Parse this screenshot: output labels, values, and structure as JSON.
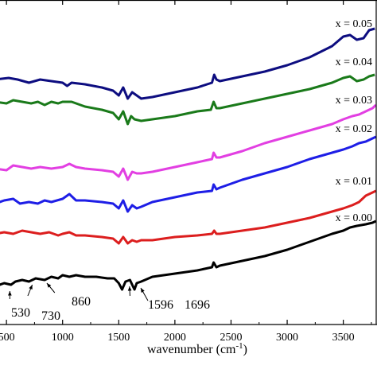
{
  "chart_data": {
    "type": "line",
    "xlabel": "wavenumber (cm",
    "xlabel_sup": "-1",
    "xlabel_close": ")",
    "xlim": [
      400,
      3800
    ],
    "xticks": [
      500,
      1000,
      1500,
      2000,
      2500,
      3000,
      3500
    ],
    "xtick_labels": [
      "500",
      "1000",
      "1500",
      "2000",
      "2500",
      "3000",
      "3500"
    ],
    "grid": false,
    "series": [
      {
        "name": "x = 0.05",
        "color": "#0d0d80",
        "points": [
          [
            400,
            100
          ],
          [
            520,
            98
          ],
          [
            600,
            100
          ],
          [
            700,
            104
          ],
          [
            800,
            100
          ],
          [
            900,
            102
          ],
          [
            1000,
            104
          ],
          [
            1040,
            108
          ],
          [
            1080,
            104
          ],
          [
            1200,
            106
          ],
          [
            1350,
            110
          ],
          [
            1450,
            114
          ],
          [
            1500,
            120
          ],
          [
            1540,
            110
          ],
          [
            1580,
            124
          ],
          [
            1620,
            116
          ],
          [
            1660,
            120
          ],
          [
            1700,
            124
          ],
          [
            1800,
            122
          ],
          [
            2000,
            116
          ],
          [
            2200,
            110
          ],
          [
            2330,
            104
          ],
          [
            2350,
            94
          ],
          [
            2370,
            100
          ],
          [
            2400,
            102
          ],
          [
            2600,
            96
          ],
          [
            2800,
            90
          ],
          [
            3000,
            82
          ],
          [
            3200,
            72
          ],
          [
            3400,
            58
          ],
          [
            3500,
            46
          ],
          [
            3560,
            44
          ],
          [
            3620,
            50
          ],
          [
            3680,
            48
          ],
          [
            3730,
            38
          ],
          [
            3780,
            36
          ]
        ]
      },
      {
        "name": "x = 0.04",
        "color": "#1a7a1a",
        "points": [
          [
            400,
            128
          ],
          [
            500,
            130
          ],
          [
            560,
            126
          ],
          [
            640,
            128
          ],
          [
            720,
            130
          ],
          [
            780,
            128
          ],
          [
            840,
            132
          ],
          [
            900,
            128
          ],
          [
            960,
            130
          ],
          [
            1000,
            128
          ],
          [
            1080,
            128
          ],
          [
            1200,
            134
          ],
          [
            1350,
            138
          ],
          [
            1450,
            142
          ],
          [
            1500,
            150
          ],
          [
            1540,
            140
          ],
          [
            1580,
            156
          ],
          [
            1610,
            146
          ],
          [
            1640,
            150
          ],
          [
            1700,
            152
          ],
          [
            1800,
            150
          ],
          [
            2000,
            146
          ],
          [
            2200,
            140
          ],
          [
            2320,
            138
          ],
          [
            2345,
            128
          ],
          [
            2370,
            136
          ],
          [
            2400,
            136
          ],
          [
            2600,
            130
          ],
          [
            2800,
            124
          ],
          [
            3000,
            118
          ],
          [
            3200,
            112
          ],
          [
            3400,
            104
          ],
          [
            3500,
            98
          ],
          [
            3560,
            96
          ],
          [
            3620,
            102
          ],
          [
            3680,
            100
          ],
          [
            3730,
            96
          ],
          [
            3780,
            94
          ]
        ]
      },
      {
        "name": "x = 0.03",
        "color": "#e23fe2",
        "points": [
          [
            400,
            212
          ],
          [
            500,
            214
          ],
          [
            560,
            208
          ],
          [
            640,
            210
          ],
          [
            720,
            212
          ],
          [
            800,
            210
          ],
          [
            900,
            212
          ],
          [
            1000,
            210
          ],
          [
            1060,
            206
          ],
          [
            1120,
            210
          ],
          [
            1200,
            212
          ],
          [
            1350,
            214
          ],
          [
            1450,
            216
          ],
          [
            1500,
            222
          ],
          [
            1540,
            212
          ],
          [
            1580,
            226
          ],
          [
            1620,
            216
          ],
          [
            1660,
            218
          ],
          [
            1700,
            218
          ],
          [
            1800,
            216
          ],
          [
            2000,
            210
          ],
          [
            2200,
            204
          ],
          [
            2330,
            200
          ],
          [
            2345,
            192
          ],
          [
            2370,
            198
          ],
          [
            2400,
            198
          ],
          [
            2600,
            190
          ],
          [
            2800,
            180
          ],
          [
            3000,
            172
          ],
          [
            3200,
            164
          ],
          [
            3400,
            156
          ],
          [
            3500,
            150
          ],
          [
            3580,
            146
          ],
          [
            3640,
            144
          ],
          [
            3700,
            140
          ],
          [
            3760,
            136
          ],
          [
            3790,
            132
          ]
        ]
      },
      {
        "name": "x = 0.02",
        "color": "#1e1ee6",
        "points": [
          [
            400,
            256
          ],
          [
            480,
            252
          ],
          [
            560,
            250
          ],
          [
            620,
            256
          ],
          [
            700,
            254
          ],
          [
            780,
            256
          ],
          [
            840,
            252
          ],
          [
            900,
            254
          ],
          [
            1000,
            250
          ],
          [
            1060,
            244
          ],
          [
            1120,
            252
          ],
          [
            1200,
            252
          ],
          [
            1350,
            254
          ],
          [
            1450,
            256
          ],
          [
            1500,
            262
          ],
          [
            1540,
            252
          ],
          [
            1580,
            266
          ],
          [
            1620,
            258
          ],
          [
            1660,
            262
          ],
          [
            1700,
            260
          ],
          [
            1800,
            254
          ],
          [
            2000,
            248
          ],
          [
            2200,
            242
          ],
          [
            2330,
            240
          ],
          [
            2345,
            232
          ],
          [
            2370,
            238
          ],
          [
            2400,
            236
          ],
          [
            2600,
            226
          ],
          [
            2800,
            218
          ],
          [
            3000,
            210
          ],
          [
            3200,
            200
          ],
          [
            3400,
            192
          ],
          [
            3500,
            188
          ],
          [
            3580,
            184
          ],
          [
            3640,
            180
          ],
          [
            3700,
            178
          ],
          [
            3760,
            174
          ],
          [
            3790,
            172
          ]
        ]
      },
      {
        "name": "x = 0.01",
        "color": "#dc1e1e",
        "points": [
          [
            400,
            294
          ],
          [
            480,
            292
          ],
          [
            560,
            294
          ],
          [
            640,
            290
          ],
          [
            720,
            292
          ],
          [
            800,
            294
          ],
          [
            880,
            292
          ],
          [
            960,
            296
          ],
          [
            1000,
            294
          ],
          [
            1060,
            292
          ],
          [
            1120,
            296
          ],
          [
            1200,
            296
          ],
          [
            1350,
            298
          ],
          [
            1450,
            300
          ],
          [
            1500,
            306
          ],
          [
            1540,
            298
          ],
          [
            1580,
            306
          ],
          [
            1620,
            302
          ],
          [
            1660,
            304
          ],
          [
            1700,
            302
          ],
          [
            1800,
            302
          ],
          [
            2000,
            298
          ],
          [
            2200,
            296
          ],
          [
            2330,
            294
          ],
          [
            2350,
            290
          ],
          [
            2370,
            294
          ],
          [
            2400,
            294
          ],
          [
            2600,
            290
          ],
          [
            2800,
            286
          ],
          [
            3000,
            280
          ],
          [
            3200,
            274
          ],
          [
            3400,
            266
          ],
          [
            3500,
            262
          ],
          [
            3580,
            258
          ],
          [
            3640,
            254
          ],
          [
            3700,
            246
          ],
          [
            3760,
            242
          ],
          [
            3790,
            240
          ]
        ]
      },
      {
        "name": "x = 0.00",
        "color": "#000000",
        "points": [
          [
            400,
            360
          ],
          [
            480,
            356
          ],
          [
            540,
            358
          ],
          [
            580,
            354
          ],
          [
            640,
            352
          ],
          [
            700,
            354
          ],
          [
            760,
            350
          ],
          [
            840,
            352
          ],
          [
            900,
            348
          ],
          [
            960,
            350
          ],
          [
            1000,
            346
          ],
          [
            1060,
            348
          ],
          [
            1120,
            346
          ],
          [
            1200,
            348
          ],
          [
            1300,
            348
          ],
          [
            1400,
            350
          ],
          [
            1460,
            350
          ],
          [
            1500,
            356
          ],
          [
            1530,
            364
          ],
          [
            1560,
            354
          ],
          [
            1600,
            352
          ],
          [
            1620,
            358
          ],
          [
            1640,
            364
          ],
          [
            1660,
            356
          ],
          [
            1700,
            354
          ],
          [
            1800,
            348
          ],
          [
            2000,
            344
          ],
          [
            2200,
            340
          ],
          [
            2330,
            336
          ],
          [
            2345,
            330
          ],
          [
            2370,
            336
          ],
          [
            2400,
            334
          ],
          [
            2600,
            328
          ],
          [
            2800,
            322
          ],
          [
            3000,
            314
          ],
          [
            3200,
            304
          ],
          [
            3400,
            294
          ],
          [
            3500,
            290
          ],
          [
            3560,
            286
          ],
          [
            3620,
            284
          ],
          [
            3700,
            282
          ],
          [
            3760,
            280
          ],
          [
            3790,
            278
          ]
        ]
      }
    ],
    "annotations": [
      {
        "text": "530",
        "x": 530,
        "target_y": 360,
        "arrow_from": [
          530,
          376
        ]
      },
      {
        "text": "730",
        "x": 730,
        "target_y": 352,
        "arrow_from": [
          690,
          372
        ]
      },
      {
        "text": "860",
        "x": 860,
        "target_y": 350,
        "arrow_from": [
          930,
          368
        ]
      },
      {
        "text": "1596",
        "x": 1596,
        "target_y": 354,
        "arrow_from": [
          1600,
          372
        ]
      },
      {
        "text": "1696",
        "x": 1696,
        "target_y": 356,
        "arrow_from": [
          1760,
          378
        ]
      }
    ]
  }
}
